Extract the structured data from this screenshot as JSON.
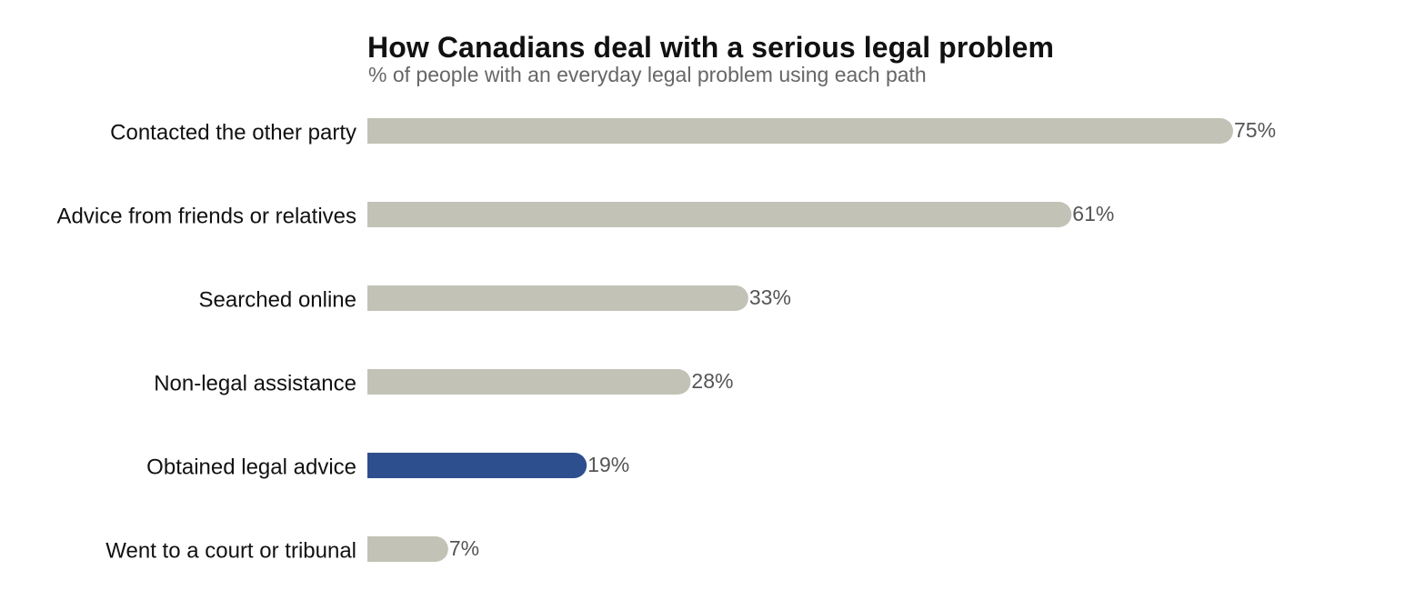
{
  "chart_data": {
    "type": "bar",
    "orientation": "horizontal",
    "title": "How Canadians deal with a serious legal problem",
    "subtitle": "% of people with an everyday legal problem using each path",
    "categories": [
      "Contacted the other party",
      "Advice from friends or relatives",
      "Searched online",
      "Non-legal assistance",
      "Obtained legal advice",
      "Went to a court or tribunal"
    ],
    "values": [
      75,
      61,
      33,
      28,
      19,
      7
    ],
    "value_labels": [
      "75%",
      "61%",
      "33%",
      "28%",
      "19%",
      "7%"
    ],
    "value_suffix": "%",
    "highlight_index": 4,
    "xlim": [
      0,
      75
    ],
    "grid": false,
    "legend": "none",
    "xlabel": "",
    "ylabel": ""
  },
  "colors": {
    "bar_default": "#c2c2b6",
    "bar_highlight": "#2e4f8e",
    "title": "#111111",
    "subtitle": "#666666",
    "value_label": "#555555"
  }
}
